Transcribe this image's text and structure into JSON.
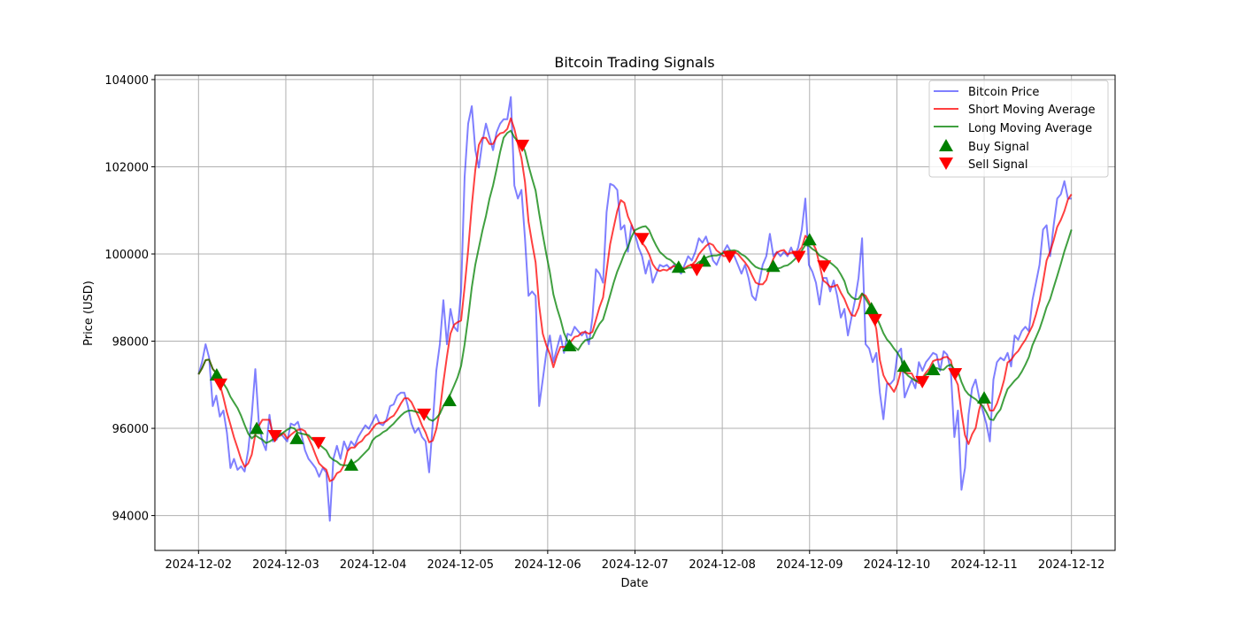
{
  "chart_data": {
    "type": "line",
    "title": "Bitcoin Trading Signals",
    "xlabel": "Date",
    "ylabel": "Price (USD)",
    "x_start": "2024-12-02T00:00",
    "x_end": "2024-12-12T00:00",
    "x_step": "hourly (approx.)",
    "xlim_days_from_start": [
      -0.5,
      10.5
    ],
    "ylim": [
      93200,
      104100
    ],
    "x_ticks": [
      "2024-12-02",
      "2024-12-03",
      "2024-12-04",
      "2024-12-05",
      "2024-12-06",
      "2024-12-07",
      "2024-12-08",
      "2024-12-09",
      "2024-12-10",
      "2024-12-11",
      "2024-12-12"
    ],
    "y_ticks": [
      94000,
      96000,
      98000,
      100000,
      102000,
      104000
    ],
    "grid": true,
    "legend_position": "top-right",
    "legend": [
      "Bitcoin Price",
      "Short Moving Average",
      "Long Moving Average",
      "Buy Signal",
      "Sell Signal"
    ],
    "colors": {
      "price": "#0000ff",
      "short_ma": "#ff0000",
      "long_ma": "#008000",
      "buy": "#008000",
      "sell": "#ff0000",
      "grid": "#b0b0b0"
    },
    "moving_average_windows": {
      "short": 5,
      "long": 12
    },
    "price": [
      97240,
      97520,
      97930,
      97620,
      96510,
      96750,
      96270,
      96410,
      95900,
      95090,
      95300,
      95050,
      95130,
      95010,
      95500,
      96310,
      97360,
      96110,
      95700,
      95500,
      96310,
      95700,
      95740,
      95900,
      95800,
      95700,
      96110,
      96070,
      96150,
      95860,
      95500,
      95300,
      95200,
      95090,
      94890,
      95090,
      94990,
      93880,
      95300,
      95600,
      95300,
      95700,
      95500,
      95700,
      95600,
      95800,
      95940,
      96070,
      95990,
      96150,
      96310,
      96110,
      96070,
      96210,
      96510,
      96550,
      96750,
      96820,
      96820,
      96510,
      96110,
      95900,
      96010,
      95800,
      95700,
      94990,
      96110,
      97320,
      97930,
      98940,
      97930,
      98740,
      98330,
      98230,
      99140,
      101770,
      102990,
      103390,
      102380,
      101980,
      102580,
      102990,
      102680,
      102380,
      102790,
      102990,
      103090,
      103090,
      103600,
      101570,
      101270,
      101470,
      100360,
      99040,
      99140,
      99040,
      96510,
      97120,
      97730,
      98130,
      97520,
      97830,
      98130,
      97730,
      98170,
      98130,
      98330,
      98230,
      98130,
      98230,
      97930,
      98540,
      99650,
      99550,
      99340,
      100960,
      101610,
      101570,
      101470,
      100560,
      100660,
      100050,
      100660,
      100460,
      100150,
      99950,
      99550,
      99850,
      99340,
      99550,
      99750,
      99710,
      99750,
      99650,
      99750,
      99650,
      99550,
      99750,
      99950,
      99850,
      100050,
      100360,
      100260,
      100400,
      100150,
      99850,
      99750,
      99950,
      100050,
      100200,
      100050,
      99950,
      99750,
      99550,
      99750,
      99450,
      99040,
      98940,
      99340,
      99750,
      99950,
      100460,
      99950,
      100050,
      99950,
      100050,
      99950,
      100150,
      99950,
      100150,
      100560,
      101270,
      99750,
      99590,
      99340,
      98840,
      99450,
      99450,
      99140,
      99390,
      99040,
      98540,
      98740,
      98130,
      98540,
      98940,
      99450,
      100360,
      97930,
      97830,
      97520,
      97730,
      96820,
      96210,
      97020,
      97020,
      97120,
      97730,
      97830,
      96710,
      96920,
      97120,
      96920,
      97520,
      97320,
      97520,
      97620,
      97730,
      97690,
      97320,
      97770,
      97690,
      97320,
      95800,
      96410,
      94590,
      95090,
      96310,
      96920,
      97120,
      96710,
      96410,
      96110,
      95700,
      97120,
      97520,
      97620,
      97560,
      97730,
      97420,
      98130,
      98030,
      98230,
      98330,
      98230,
      98940,
      99340,
      99750,
      100560,
      100660,
      99950,
      100660,
      101270,
      101370,
      101670,
      101270,
      101270
    ],
    "buy_signals": [
      {
        "hour": 5,
        "value": 97220
      },
      {
        "hour": 16,
        "value": 95990
      },
      {
        "hour": 27,
        "value": 95760
      },
      {
        "hour": 42,
        "value": 95150
      },
      {
        "hour": 69,
        "value": 96630
      },
      {
        "hour": 102,
        "value": 97890
      },
      {
        "hour": 132,
        "value": 99690
      },
      {
        "hour": 139,
        "value": 99830
      },
      {
        "hour": 158,
        "value": 99710
      },
      {
        "hour": 168,
        "value": 100320
      },
      {
        "hour": 185,
        "value": 98740
      },
      {
        "hour": 194,
        "value": 97420
      },
      {
        "hour": 202,
        "value": 97340
      },
      {
        "hour": 216,
        "value": 96690
      }
    ],
    "sell_signals": [
      {
        "hour": 6,
        "value": 97020
      },
      {
        "hour": 21,
        "value": 95840
      },
      {
        "hour": 33,
        "value": 95680
      },
      {
        "hour": 62,
        "value": 96330
      },
      {
        "hour": 89,
        "value": 102500
      },
      {
        "hour": 122,
        "value": 100360
      },
      {
        "hour": 137,
        "value": 99650
      },
      {
        "hour": 146,
        "value": 99950
      },
      {
        "hour": 165,
        "value": 99950
      },
      {
        "hour": 172,
        "value": 99730
      },
      {
        "hour": 186,
        "value": 98500
      },
      {
        "hour": 199,
        "value": 97080
      },
      {
        "hour": 208,
        "value": 97260
      }
    ]
  }
}
